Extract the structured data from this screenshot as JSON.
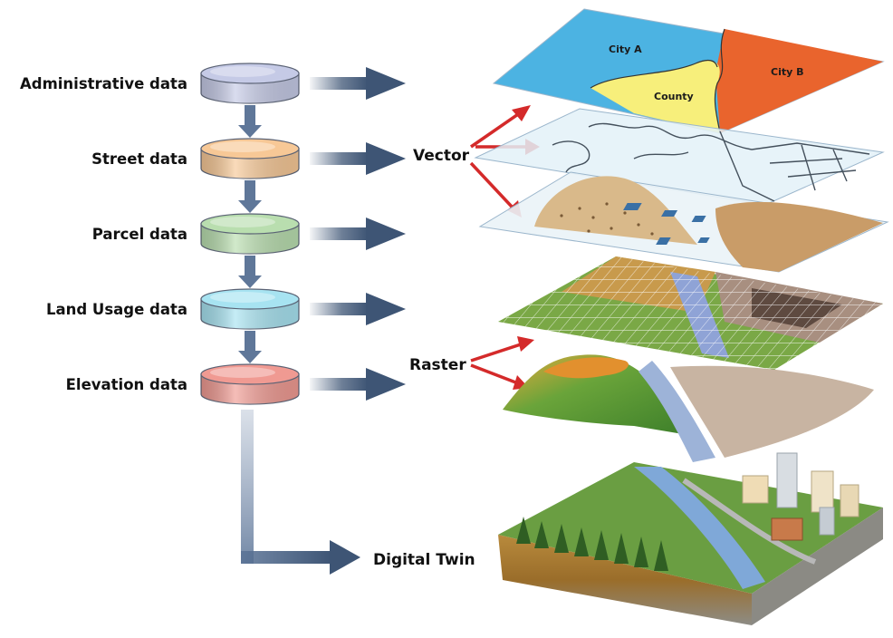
{
  "layers": [
    {
      "label": "Administrative data",
      "color": "#c5cae6"
    },
    {
      "label": "Street data",
      "color": "#f7c896"
    },
    {
      "label": "Parcel data",
      "color": "#b9deaf"
    },
    {
      "label": "Land Usage data",
      "color": "#a7e3f1"
    },
    {
      "label": "Elevation data",
      "color": "#f09a92"
    }
  ],
  "vector_label": "Vector",
  "raster_label": "Raster",
  "digital_twin_label": "Digital Twin",
  "map_labels": {
    "city_a": "City A",
    "city_b": "City B",
    "county": "County"
  },
  "colors": {
    "arrow": "#3e5575",
    "red_arrow": "#d42a2a",
    "city_a": "#4cb3e2",
    "city_b": "#e9642d",
    "county": "#f7ef7b"
  }
}
